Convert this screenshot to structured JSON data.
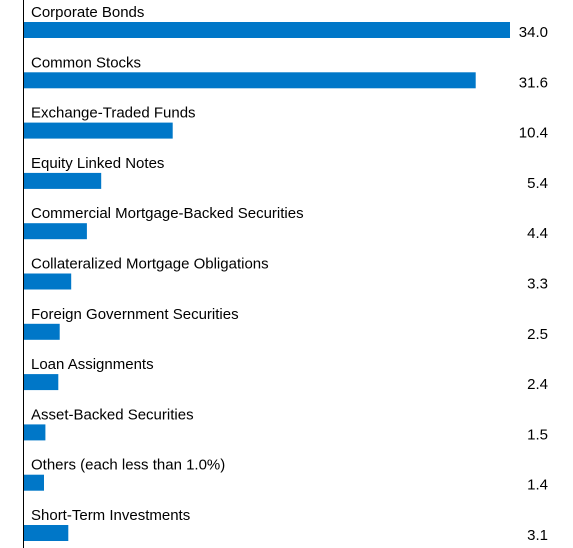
{
  "chart_data": {
    "type": "bar",
    "orientation": "horizontal",
    "categories": [
      "Corporate Bonds",
      "Common Stocks",
      "Exchange-Traded Funds",
      "Equity Linked Notes",
      "Commercial Mortgage-Backed Securities",
      "Collateralized Mortgage Obligations",
      "Foreign Government Securities",
      "Loan Assignments",
      "Asset-Backed Securities",
      "Others (each less than 1.0%)",
      "Short-Term Investments"
    ],
    "values": [
      34.0,
      31.6,
      10.4,
      5.4,
      4.4,
      3.3,
      2.5,
      2.4,
      1.5,
      1.4,
      3.1
    ],
    "value_labels": [
      "34.0",
      "31.6",
      "10.4",
      "5.4",
      "4.4",
      "3.3",
      "2.5",
      "2.4",
      "1.5",
      "1.4",
      "3.1"
    ],
    "xlim": [
      0,
      34.0
    ],
    "bar_color": "#0077C8",
    "axis_color": "#000000",
    "grid": false,
    "legend": "none"
  }
}
